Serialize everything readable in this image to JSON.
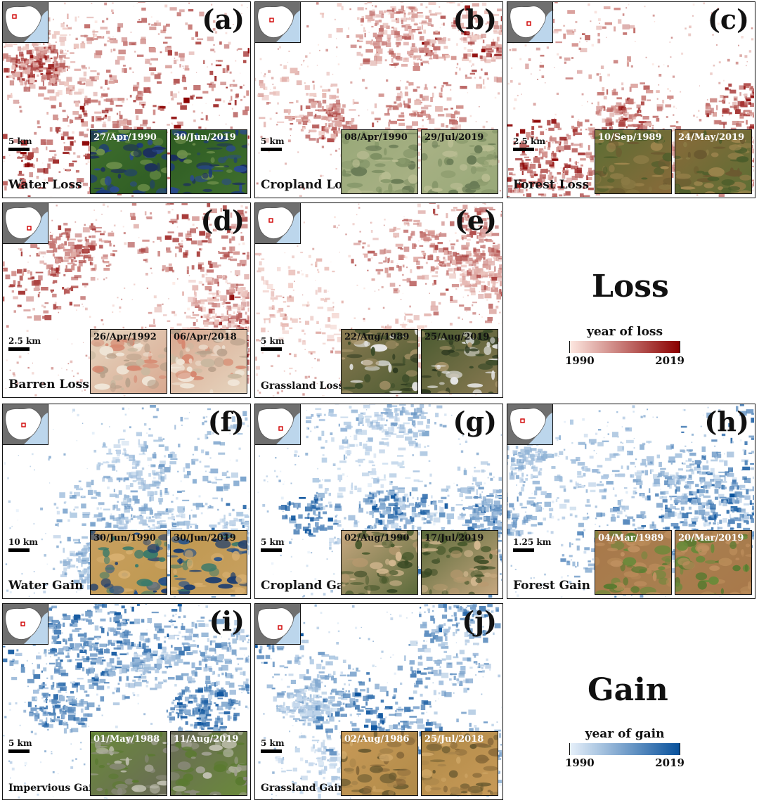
{
  "colors": {
    "loss_start": "#fde7e0",
    "loss_end": "#8b0000",
    "gain_start": "#e6f0fa",
    "gain_end": "#08519c"
  },
  "panels": [
    {
      "letter": "(a)",
      "label": "Water Loss",
      "scale": "5 km",
      "dates": [
        "27/Apr/1990",
        "30/Jun/2019"
      ],
      "theme": "loss",
      "thumb_style": "green_water",
      "date_color": "#ffffff"
    },
    {
      "letter": "(b)",
      "label": "Cropland Loss",
      "scale": "5 km",
      "dates": [
        "08/Apr/1990",
        "29/Jul/2019"
      ],
      "theme": "loss",
      "thumb_style": "pale_green",
      "date_color": "#111111"
    },
    {
      "letter": "(c)",
      "label": "Forest Loss",
      "scale": "2.5 km",
      "dates": [
        "10/Sep/1989",
        "24/May/2019"
      ],
      "theme": "loss",
      "thumb_style": "forest_brown",
      "date_color": "#ffffff"
    },
    {
      "letter": "(d)",
      "label": "Barren Loss",
      "scale": "2.5 km",
      "dates": [
        "26/Apr/1992",
        "06/Apr/2018"
      ],
      "theme": "loss",
      "thumb_style": "barren",
      "date_color": "#111111"
    },
    {
      "letter": "(e)",
      "label": "Grassland Loss",
      "scale": "5 km",
      "dates": [
        "22/Aug/1989",
        "25/Aug/2019"
      ],
      "theme": "loss",
      "thumb_style": "grass_dark",
      "date_color": "#111111"
    },
    {
      "letter": "(f)",
      "label": "Water Gain",
      "scale": "10 km",
      "dates": [
        "30/Jun/1990",
        "30/Jun/2019"
      ],
      "theme": "gain",
      "thumb_style": "desert_lake",
      "date_color": "#111111"
    },
    {
      "letter": "(g)",
      "label": "Cropland Gain",
      "scale": "5 km",
      "dates": [
        "02/Aug/1990",
        "17/Jul/2019"
      ],
      "theme": "gain",
      "thumb_style": "desert_green",
      "date_color": "#111111"
    },
    {
      "letter": "(h)",
      "label": "Forest Gain",
      "scale": "1.25 km",
      "dates": [
        "04/Mar/1989",
        "20/Mar/2019"
      ],
      "theme": "gain",
      "thumb_style": "brown_green",
      "date_color": "#ffffff"
    },
    {
      "letter": "(i)",
      "label": "Impervious Gain",
      "scale": "5 km",
      "dates": [
        "01/May/1988",
        "11/Aug/2019"
      ],
      "theme": "gain",
      "thumb_style": "urban",
      "date_color": "#ffffff"
    },
    {
      "letter": "(j)",
      "label": "Grassland Gain",
      "scale": "5 km",
      "dates": [
        "02/Aug/1986",
        "25/Jul/2018"
      ],
      "theme": "gain",
      "thumb_style": "sand",
      "date_color": "#ffffff"
    }
  ],
  "loss_legend": {
    "heading": "Loss",
    "title": "year of loss",
    "min": "1990",
    "max": "2019"
  },
  "gain_legend": {
    "heading": "Gain",
    "title": "year of gain",
    "min": "1990",
    "max": "2019"
  }
}
